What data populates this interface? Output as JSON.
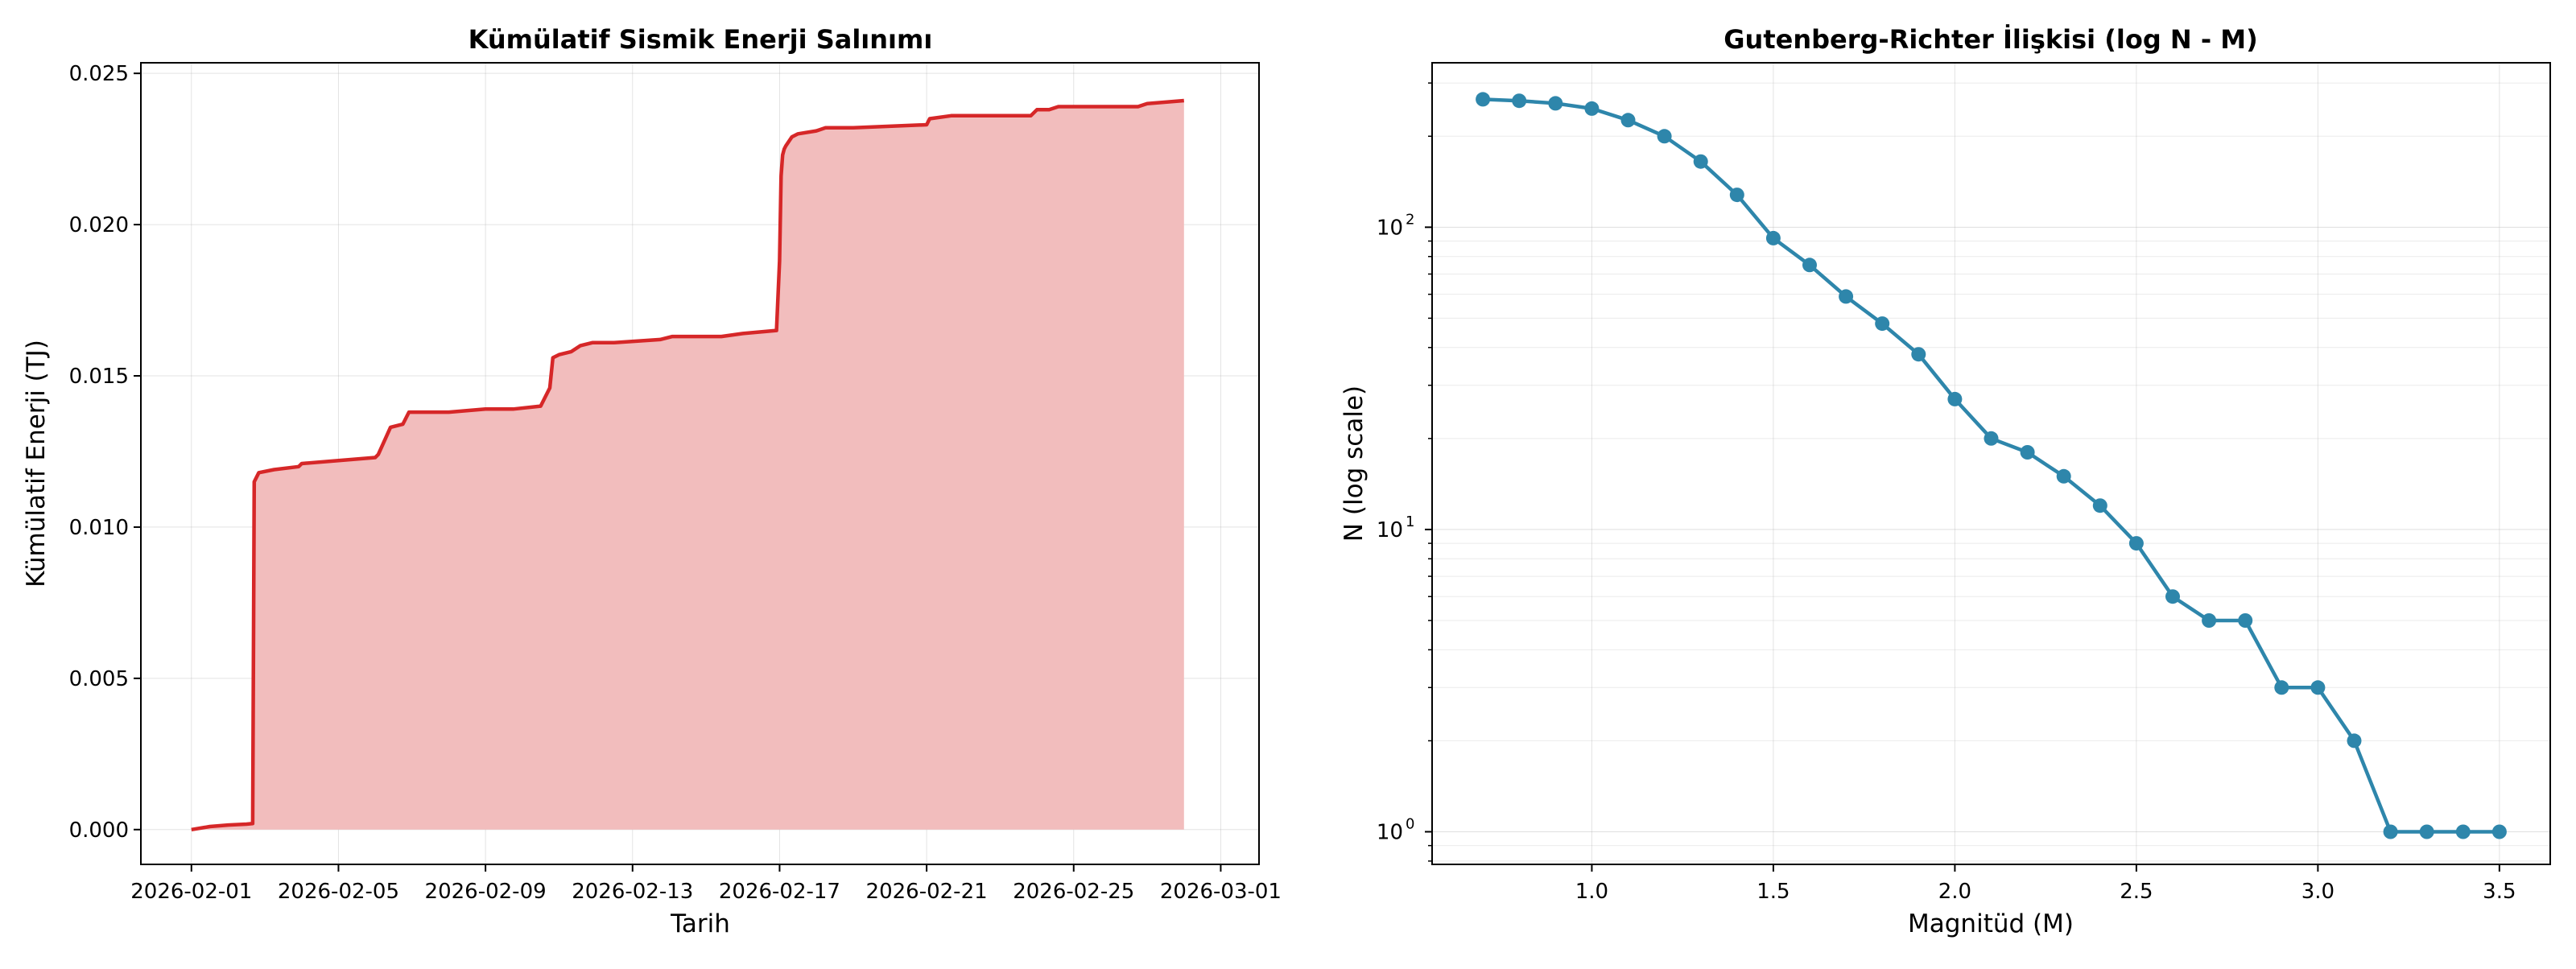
{
  "chart_data": [
    {
      "type": "area",
      "title": "Kümülatif Sismik Enerji Salınımı",
      "xlabel": "Tarih",
      "ylabel": "Kümülatif Enerji (TJ)",
      "x_ticks": [
        "2026-02-01",
        "2026-02-05",
        "2026-02-09",
        "2026-02-13",
        "2026-02-17",
        "2026-02-21",
        "2026-02-25",
        "2026-03-01"
      ],
      "y_ticks": [
        "0.000",
        "0.005",
        "0.010",
        "0.015",
        "0.020",
        "0.025"
      ],
      "xlim": [
        "2026-01-30 15:00",
        "2026-03-02 01:00"
      ],
      "ylim": [
        -0.00115,
        0.02535
      ],
      "grid": true,
      "line_color": "#d62728",
      "fill_color": "#f2bdbd",
      "series": [
        {
          "x": [
            "2026-02-01 00:00",
            "2026-02-01 12:00",
            "2026-02-02 00:00",
            "2026-02-02 12:00",
            "2026-02-02 16:00",
            "2026-02-02 17:00",
            "2026-02-02 20:00",
            "2026-02-03 06:00",
            "2026-02-03 22:00",
            "2026-02-04 00:00",
            "2026-02-05 00:00",
            "2026-02-06 00:00",
            "2026-02-06 02:00",
            "2026-02-06 10:00",
            "2026-02-06 18:00",
            "2026-02-06 22:00",
            "2026-02-07 12:00",
            "2026-02-08 00:00",
            "2026-02-09 00:00",
            "2026-02-09 18:00",
            "2026-02-10 12:00",
            "2026-02-10 18:00",
            "2026-02-10 20:00",
            "2026-02-11 00:00",
            "2026-02-11 08:00",
            "2026-02-11 14:00",
            "2026-02-11 22:00",
            "2026-02-12 12:00",
            "2026-02-13 18:00",
            "2026-02-14 02:00",
            "2026-02-15 10:00",
            "2026-02-16 00:00",
            "2026-02-16 22:00",
            "2026-02-17 00:00",
            "2026-02-17 01:00",
            "2026-02-17 02:00",
            "2026-02-17 03:00",
            "2026-02-17 04:00",
            "2026-02-17 08:00",
            "2026-02-17 12:00",
            "2026-02-18 00:00",
            "2026-02-18 06:00",
            "2026-02-19 00:00",
            "2026-02-21 00:00",
            "2026-02-21 02:00",
            "2026-02-21 16:00",
            "2026-02-23 20:00",
            "2026-02-24 00:00",
            "2026-02-24 08:00",
            "2026-02-24 14:00",
            "2026-02-25 06:00",
            "2026-02-26 18:00",
            "2026-02-27 00:00",
            "2026-02-28 00:00"
          ],
          "values": [
            0.0,
            0.0001,
            0.00015,
            0.00018,
            0.0002,
            0.0115,
            0.0118,
            0.0119,
            0.012,
            0.0121,
            0.0122,
            0.0123,
            0.0124,
            0.0133,
            0.0134,
            0.0138,
            0.0138,
            0.0138,
            0.0139,
            0.0139,
            0.014,
            0.0146,
            0.0156,
            0.0157,
            0.0158,
            0.016,
            0.0161,
            0.0161,
            0.0162,
            0.0163,
            0.0163,
            0.0164,
            0.0165,
            0.0188,
            0.0216,
            0.0223,
            0.0225,
            0.0226,
            0.0229,
            0.023,
            0.0231,
            0.0232,
            0.0232,
            0.0233,
            0.0235,
            0.0236,
            0.0236,
            0.0238,
            0.0238,
            0.0239,
            0.0239,
            0.0239,
            0.024,
            0.0241
          ]
        }
      ]
    },
    {
      "type": "line",
      "title": "Gutenberg-Richter İlişkisi (log N - M)",
      "xlabel": "Magnitüd (M)",
      "ylabel": "N (log scale)",
      "x_ticks": [
        "1.0",
        "1.5",
        "2.0",
        "2.5",
        "3.0",
        "3.5"
      ],
      "y_ticks": [
        {
          "base": "10",
          "exp": "0",
          "value": 1
        },
        {
          "base": "10",
          "exp": "1",
          "value": 10
        },
        {
          "base": "10",
          "exp": "2",
          "value": 100
        }
      ],
      "y_scale": "log",
      "xlim": [
        0.56,
        3.64
      ],
      "ylim": [
        0.78,
        350
      ],
      "grid": true,
      "line_color": "#2e86ab",
      "series": [
        {
          "x": [
            0.7,
            0.8,
            0.9,
            1.0,
            1.1,
            1.2,
            1.3,
            1.4,
            1.5,
            1.6,
            1.7,
            1.8,
            1.9,
            2.0,
            2.1,
            2.2,
            2.3,
            2.4,
            2.5,
            2.6,
            2.7,
            2.8,
            2.9,
            3.0,
            3.1,
            3.2,
            3.3,
            3.4,
            3.5
          ],
          "values": [
            265,
            262,
            257,
            247,
            226,
            200,
            165,
            128,
            92,
            75,
            59,
            48,
            38,
            27,
            20,
            18,
            15,
            12,
            9,
            6,
            5,
            5,
            3,
            3,
            2,
            1,
            1,
            1,
            1
          ]
        }
      ]
    }
  ]
}
